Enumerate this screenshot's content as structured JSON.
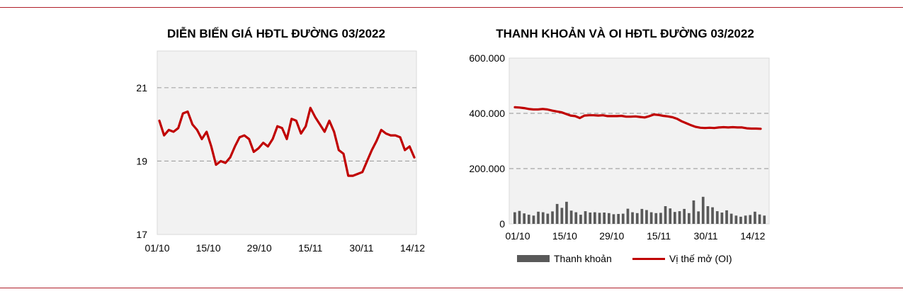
{
  "chart_data": [
    {
      "type": "line",
      "title": "DIỄN BIẾN GIÁ HĐTL ĐƯỜNG 03/2022",
      "xlabel": "",
      "ylabel": "",
      "x_ticks": [
        "01/10",
        "15/10",
        "29/10",
        "15/11",
        "30/11",
        "14/12"
      ],
      "y_ticks": [
        "17",
        "19",
        "21"
      ],
      "ylim": [
        17,
        22
      ],
      "grid": true,
      "color": "#c00000",
      "series": [
        {
          "values": [
            20.1,
            19.7,
            19.85,
            19.8,
            19.9,
            20.3,
            20.35,
            20.0,
            19.85,
            19.6,
            19.8,
            19.4,
            18.9,
            19.0,
            18.95,
            19.1,
            19.4,
            19.65,
            19.7,
            19.6,
            19.25,
            19.35,
            19.5,
            19.4,
            19.6,
            19.95,
            19.9,
            19.6,
            20.15,
            20.1,
            19.75,
            19.95,
            20.45,
            20.2,
            20.0,
            19.8,
            20.1,
            19.8,
            19.3,
            19.2,
            18.6,
            18.6,
            18.65,
            18.7,
            19.0,
            19.3,
            19.55,
            19.85,
            19.75,
            19.7,
            19.7,
            19.65,
            19.3,
            19.4,
            19.1
          ]
        }
      ]
    },
    {
      "type": "bar+line",
      "title": "THANH KHOẢN VÀ OI HĐTL ĐƯỜNG 03/2022",
      "xlabel": "",
      "ylabel": "",
      "x_ticks": [
        "01/10",
        "15/10",
        "29/10",
        "15/11",
        "30/11",
        "14/12"
      ],
      "y_ticks": [
        "0",
        "200.000",
        "400.000",
        "600.000"
      ],
      "ylim": [
        0,
        600000
      ],
      "grid": true,
      "legend_position": "bottom",
      "series": [
        {
          "name": "Thanh khoản",
          "type": "bar",
          "color": "#595959",
          "values": [
            42000,
            47000,
            38000,
            33000,
            30000,
            44000,
            42000,
            37000,
            45000,
            72000,
            58000,
            80000,
            48000,
            42000,
            33000,
            46000,
            41000,
            42000,
            40000,
            41000,
            39000,
            35000,
            36000,
            37000,
            55000,
            42000,
            39000,
            54000,
            50000,
            42000,
            39000,
            40000,
            64000,
            56000,
            43000,
            46000,
            54000,
            39000,
            85000,
            45000,
            98000,
            64000,
            60000,
            46000,
            41000,
            49000,
            37000,
            30000,
            26000,
            30000,
            32000,
            44000,
            34000,
            30000
          ]
        },
        {
          "name": "Vị thế mở (OI)",
          "type": "line",
          "color": "#c00000",
          "values": [
            422000,
            421000,
            419000,
            416000,
            414000,
            414000,
            416000,
            414000,
            410000,
            407000,
            404000,
            398000,
            392000,
            390000,
            383000,
            392000,
            393000,
            393000,
            392000,
            393000,
            390000,
            390000,
            390000,
            391000,
            388000,
            388000,
            389000,
            387000,
            385000,
            390000,
            396000,
            394000,
            391000,
            389000,
            386000,
            380000,
            371000,
            364000,
            357000,
            351000,
            348000,
            347000,
            348000,
            347000,
            349000,
            350000,
            349000,
            350000,
            349000,
            349000,
            346000,
            345000,
            345000,
            344000
          ]
        }
      ]
    }
  ]
}
